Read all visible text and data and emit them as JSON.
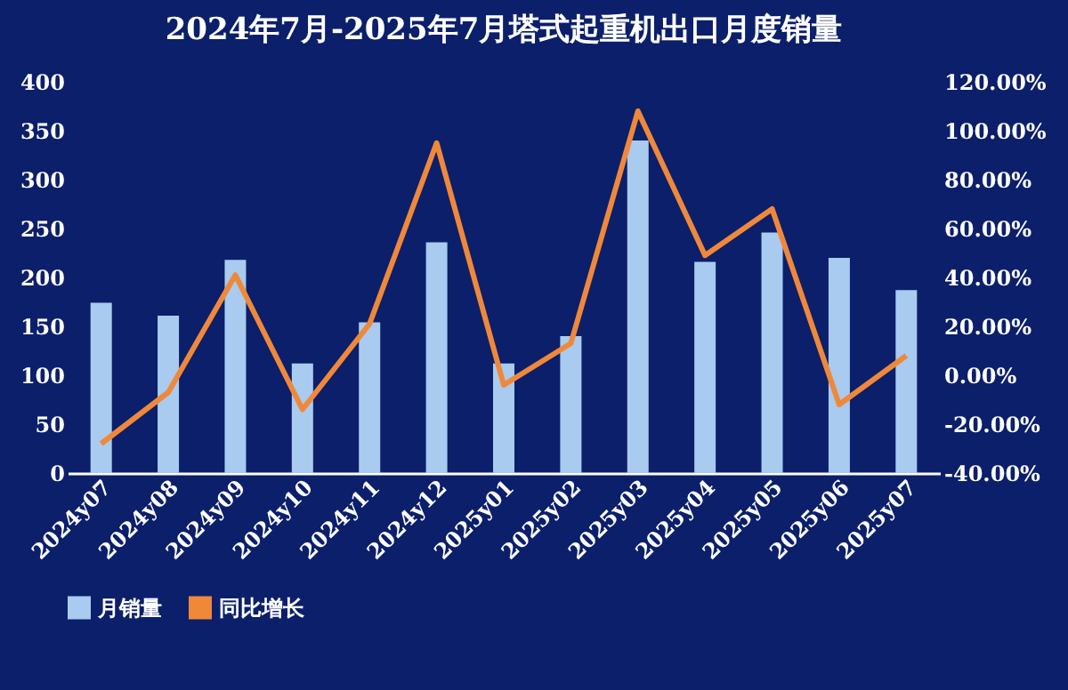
{
  "chart_data": {
    "type": "bar",
    "title": "2024年7月-2025年7月塔式起重机出口月度销量",
    "categories": [
      "2024y07",
      "2024y08",
      "2024y09",
      "2024y10",
      "2024y11",
      "2024y12",
      "2025y01",
      "2025y02",
      "2025y03",
      "2025y04",
      "2025y05",
      "2025y06",
      "2025y07"
    ],
    "series": [
      {
        "name": "月销量",
        "color": "#a9cbef",
        "values": [
          174,
          161,
          218,
          112,
          154,
          236,
          112,
          140,
          340,
          216,
          246,
          220,
          187
        ]
      },
      {
        "name": "同比增长",
        "type": "line",
        "axis": "y2",
        "color": "#f0883a",
        "values": [
          -28,
          -7,
          41,
          -14,
          21,
          95,
          -4,
          13,
          108,
          49,
          68,
          -12,
          8
        ]
      }
    ],
    "ylim": [
      0,
      400
    ],
    "yticks": [
      0,
      50,
      100,
      150,
      200,
      250,
      300,
      350,
      400
    ],
    "y2lim": [
      -40,
      120
    ],
    "y2ticks": [
      {
        "value": -40,
        "label": "-40.00%"
      },
      {
        "value": -20,
        "label": "-20.00%"
      },
      {
        "value": 0,
        "label": "0.00%"
      },
      {
        "value": 20,
        "label": "20.00%"
      },
      {
        "value": 40,
        "label": "40.00%"
      },
      {
        "value": 60,
        "label": "60.00%"
      },
      {
        "value": 80,
        "label": "80.00%"
      },
      {
        "value": 100,
        "label": "100.00%"
      },
      {
        "value": 120,
        "label": "120.00%"
      }
    ],
    "grid": false,
    "legend": "bottom"
  }
}
